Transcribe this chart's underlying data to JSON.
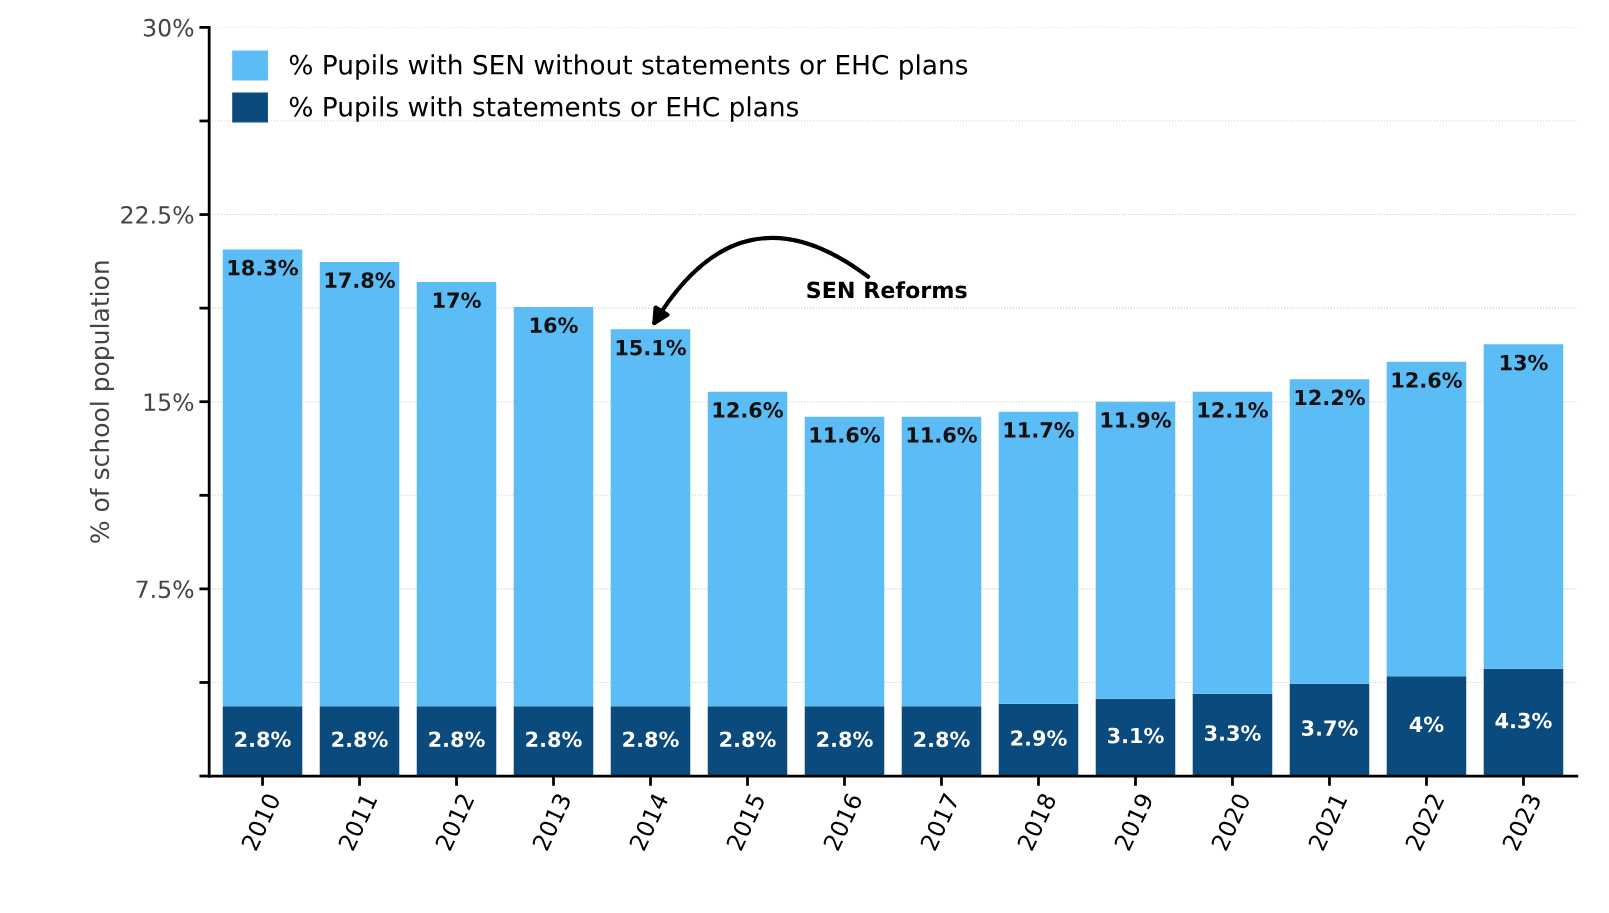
{
  "chart_data": {
    "type": "bar",
    "stacked": true,
    "ylabel": "% of school population",
    "categories": [
      "2010",
      "2011",
      "2012",
      "2013",
      "2014",
      "2015",
      "2016",
      "2017",
      "2018",
      "2019",
      "2020",
      "2021",
      "2022",
      "2023"
    ],
    "series": [
      {
        "name": "% Pupils with statements or EHC plans",
        "color": "#0b4a7c",
        "values": [
          2.8,
          2.8,
          2.8,
          2.8,
          2.8,
          2.8,
          2.8,
          2.8,
          2.9,
          3.1,
          3.3,
          3.7,
          4,
          4.3
        ],
        "value_labels": [
          "2.8%",
          "2.8%",
          "2.8%",
          "2.8%",
          "2.8%",
          "2.8%",
          "2.8%",
          "2.8%",
          "2.9%",
          "3.1%",
          "3.3%",
          "3.7%",
          "4%",
          "4.3%"
        ]
      },
      {
        "name": "% Pupils with SEN without statements or EHC plans",
        "color": "#5bbcf6",
        "values": [
          18.3,
          17.8,
          17,
          16,
          15.1,
          12.6,
          11.6,
          11.6,
          11.7,
          11.9,
          12.1,
          12.2,
          12.6,
          13
        ],
        "value_labels": [
          "18.3%",
          "17.8%",
          "17%",
          "16%",
          "15.1%",
          "12.6%",
          "11.6%",
          "11.6%",
          "11.7%",
          "11.9%",
          "12.1%",
          "12.2%",
          "12.6%",
          "13%"
        ]
      }
    ],
    "ylim": [
      0,
      30
    ],
    "yticks": [
      {
        "value": 0,
        "label": null
      },
      {
        "value": 3.75,
        "label": null
      },
      {
        "value": 7.5,
        "label": "7.5%"
      },
      {
        "value": 11.25,
        "label": null
      },
      {
        "value": 15,
        "label": "15%"
      },
      {
        "value": 18.75,
        "label": null
      },
      {
        "value": 22.5,
        "label": "22.5%"
      },
      {
        "value": 26.25,
        "label": null
      },
      {
        "value": 30,
        "label": "30%"
      }
    ],
    "grid": "y",
    "legend": "top left",
    "annotations": [
      {
        "text": "SEN Reforms",
        "x": "2014",
        "y": 17.9
      }
    ]
  }
}
